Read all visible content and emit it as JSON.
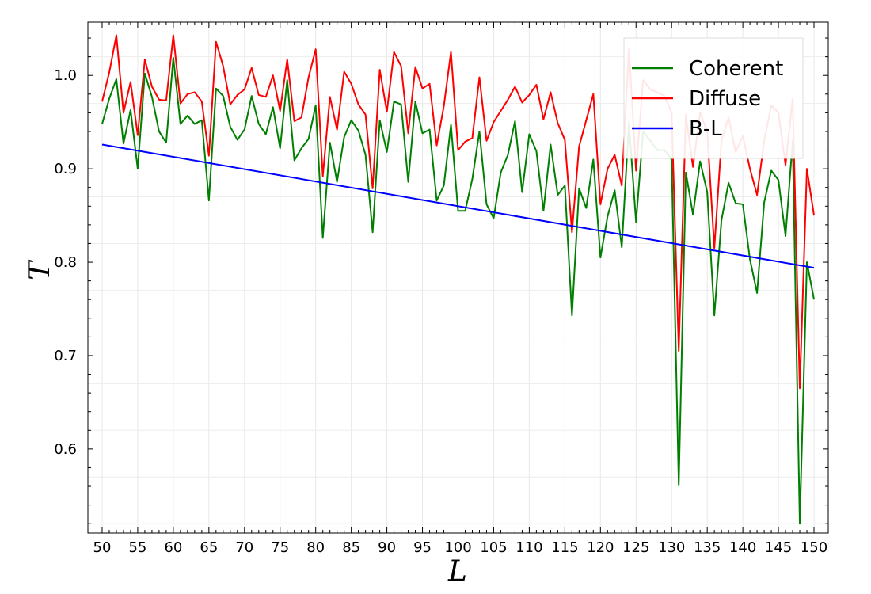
{
  "chart_data": {
    "type": "line",
    "title": "",
    "xlabel": "L",
    "ylabel": "T",
    "xlim": [
      48,
      152
    ],
    "ylim": [
      0.51,
      1.057
    ],
    "xticks": [
      50,
      55,
      60,
      65,
      70,
      75,
      80,
      85,
      90,
      95,
      100,
      105,
      110,
      115,
      120,
      125,
      130,
      135,
      140,
      145,
      150
    ],
    "yticks": [
      0.6,
      0.7,
      0.8,
      0.9,
      1.0
    ],
    "ytick_labels": [
      "0.6",
      "0.7",
      "0.8",
      "0.9",
      "1.0"
    ],
    "grid": true,
    "legend_position": "top-right",
    "series": [
      {
        "name": "Coherent",
        "color": "#008000",
        "x": [
          50,
          51,
          52,
          53,
          54,
          55,
          56,
          57,
          58,
          59,
          60,
          61,
          62,
          63,
          64,
          65,
          66,
          67,
          68,
          69,
          70,
          71,
          72,
          73,
          74,
          75,
          76,
          77,
          78,
          79,
          80,
          81,
          82,
          83,
          84,
          85,
          86,
          87,
          88,
          89,
          90,
          91,
          92,
          93,
          94,
          95,
          96,
          97,
          98,
          99,
          100,
          101,
          102,
          103,
          104,
          105,
          106,
          107,
          108,
          109,
          110,
          111,
          112,
          113,
          114,
          115,
          116,
          117,
          118,
          119,
          120,
          121,
          122,
          123,
          124,
          125,
          126,
          127,
          128,
          129,
          130,
          131,
          132,
          133,
          134,
          135,
          136,
          137,
          138,
          139,
          140,
          141,
          142,
          143,
          144,
          145,
          146,
          147,
          148,
          149,
          150
        ],
        "values": [
          0.948,
          0.975,
          0.996,
          0.927,
          0.963,
          0.9,
          1.002,
          0.977,
          0.94,
          0.928,
          1.019,
          0.948,
          0.957,
          0.948,
          0.952,
          0.866,
          0.986,
          0.978,
          0.945,
          0.931,
          0.942,
          0.978,
          0.948,
          0.937,
          0.966,
          0.922,
          0.995,
          0.909,
          0.922,
          0.932,
          0.968,
          0.826,
          0.928,
          0.886,
          0.934,
          0.952,
          0.941,
          0.915,
          0.832,
          0.952,
          0.918,
          0.972,
          0.969,
          0.886,
          0.972,
          0.938,
          0.942,
          0.866,
          0.882,
          0.947,
          0.855,
          0.855,
          0.889,
          0.94,
          0.862,
          0.847,
          0.896,
          0.915,
          0.951,
          0.875,
          0.937,
          0.919,
          0.855,
          0.926,
          0.872,
          0.882,
          0.743,
          0.879,
          0.858,
          0.91,
          0.805,
          0.849,
          0.877,
          0.816,
          0.95,
          0.843,
          0.94,
          0.93,
          0.92,
          0.92,
          0.91,
          0.561,
          0.896,
          0.851,
          0.908,
          0.875,
          0.743,
          0.845,
          0.885,
          0.863,
          0.862,
          0.803,
          0.767,
          0.864,
          0.898,
          0.888,
          0.828,
          0.93,
          0.52,
          0.8,
          0.76
        ]
      },
      {
        "name": "Diffuse",
        "color": "#ff0000",
        "x": [
          50,
          51,
          52,
          53,
          54,
          55,
          56,
          57,
          58,
          59,
          60,
          61,
          62,
          63,
          64,
          65,
          66,
          67,
          68,
          69,
          70,
          71,
          72,
          73,
          74,
          75,
          76,
          77,
          78,
          79,
          80,
          81,
          82,
          83,
          84,
          85,
          86,
          87,
          88,
          89,
          90,
          91,
          92,
          93,
          94,
          95,
          96,
          97,
          98,
          99,
          100,
          101,
          102,
          103,
          104,
          105,
          106,
          107,
          108,
          109,
          110,
          111,
          112,
          113,
          114,
          115,
          116,
          117,
          118,
          119,
          120,
          121,
          122,
          123,
          124,
          125,
          126,
          127,
          128,
          129,
          130,
          131,
          132,
          133,
          134,
          135,
          136,
          137,
          138,
          139,
          140,
          141,
          142,
          143,
          144,
          145,
          146,
          147,
          148,
          149,
          150
        ],
        "values": [
          0.972,
          1.003,
          1.043,
          0.96,
          0.993,
          0.936,
          1.017,
          0.988,
          0.974,
          0.973,
          1.043,
          0.97,
          0.98,
          0.982,
          0.972,
          0.914,
          1.036,
          1.01,
          0.969,
          0.979,
          0.985,
          1.008,
          0.979,
          0.977,
          1.0,
          0.962,
          1.017,
          0.951,
          0.955,
          0.998,
          1.028,
          0.892,
          0.977,
          0.942,
          1.004,
          0.991,
          0.969,
          0.958,
          0.879,
          1.006,
          0.961,
          1.025,
          1.01,
          0.938,
          1.009,
          0.986,
          0.991,
          0.925,
          0.967,
          1.025,
          0.92,
          0.929,
          0.933,
          0.998,
          0.93,
          0.95,
          0.962,
          0.974,
          0.988,
          0.971,
          0.979,
          0.99,
          0.953,
          0.982,
          0.949,
          0.931,
          0.832,
          0.924,
          0.952,
          0.98,
          0.862,
          0.9,
          0.915,
          0.882,
          1.03,
          0.898,
          0.995,
          0.985,
          0.982,
          0.978,
          0.96,
          0.705,
          0.958,
          0.902,
          0.96,
          0.94,
          0.815,
          0.93,
          0.955,
          0.918,
          0.935,
          0.9,
          0.872,
          0.93,
          0.968,
          0.96,
          0.904,
          0.975,
          0.665,
          0.9,
          0.85
        ]
      },
      {
        "name": "B-L",
        "color": "#0000ff",
        "x": [
          50,
          150
        ],
        "values": [
          0.926,
          0.794
        ]
      }
    ]
  }
}
